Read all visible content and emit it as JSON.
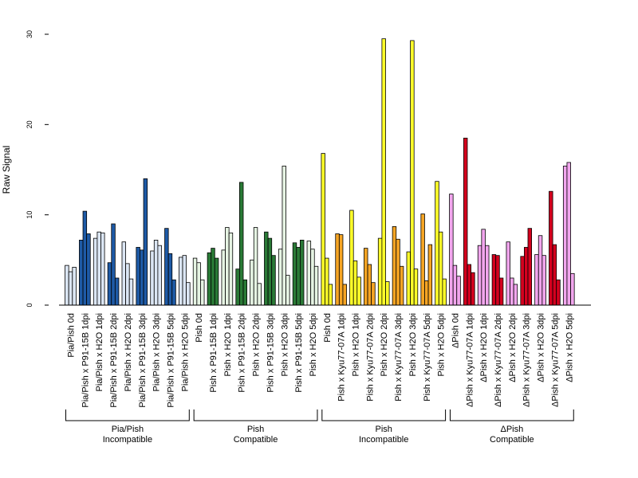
{
  "chart_data": {
    "type": "bar",
    "ylabel": "Raw Signal",
    "ylim": [
      0,
      30
    ],
    "yticks": [
      0,
      10,
      20,
      30
    ],
    "grid": false,
    "colors": {
      "pale_blue": "#dbe6f4",
      "dark_blue": "#1e5aa6",
      "pale_green": "#e6f4e3",
      "dark_green": "#2a7a36",
      "yellow": "#ffff2a",
      "orange": "#f6a524",
      "pink": "#f2a6ee",
      "red": "#d4001e"
    },
    "categories": [
      {
        "label": "Pia/Pish 0d",
        "color": "pale_blue",
        "values": [
          4.4,
          3.7,
          4.2
        ]
      },
      {
        "label": "Pia/Pish x P91-15B 1dpi",
        "color": "dark_blue",
        "values": [
          7.2,
          10.4,
          7.9
        ]
      },
      {
        "label": "Pia/Pish x H2O 1dpi",
        "color": "pale_blue",
        "values": [
          7.4,
          8.1,
          8.0
        ]
      },
      {
        "label": "Pia/Pish x P91-15B 2dpi",
        "color": "dark_blue",
        "values": [
          4.7,
          9.0,
          3.0
        ]
      },
      {
        "label": "Pia/Pish x H2O 2dpi",
        "color": "pale_blue",
        "values": [
          7.0,
          4.6,
          2.9
        ]
      },
      {
        "label": "Pia/Pish x P91-15B 3dpi",
        "color": "dark_blue",
        "values": [
          6.4,
          6.1,
          14.0
        ]
      },
      {
        "label": "Pia/Pish x H2O 3dpi",
        "color": "pale_blue",
        "values": [
          6.0,
          7.2,
          6.6
        ]
      },
      {
        "label": "Pia/Pish x P91-15B 5dpi",
        "color": "dark_blue",
        "values": [
          8.5,
          5.7,
          2.8
        ]
      },
      {
        "label": "Pia/Pish x H2O 5dpi",
        "color": "pale_blue",
        "values": [
          5.3,
          5.5,
          2.5
        ]
      },
      {
        "label": "Pish 0d",
        "color": "pale_green",
        "values": [
          5.2,
          4.7,
          2.8
        ]
      },
      {
        "label": "Pish x P91-15B 1dpi",
        "color": "dark_green",
        "values": [
          5.8,
          6.3,
          5.2
        ]
      },
      {
        "label": "Pish x H2O 1dpi",
        "color": "pale_green",
        "values": [
          6.1,
          8.6,
          8.0
        ]
      },
      {
        "label": "Pish x P91-15B 2dpi",
        "color": "dark_green",
        "values": [
          4.0,
          13.6,
          2.8
        ]
      },
      {
        "label": "Pish x H2O 2dpi",
        "color": "pale_green",
        "values": [
          5.0,
          8.6,
          2.4
        ]
      },
      {
        "label": "Pish x P91-15B 3dpi",
        "color": "dark_green",
        "values": [
          8.1,
          7.4,
          5.5
        ]
      },
      {
        "label": "Pish x H2O 3dpi",
        "color": "pale_green",
        "values": [
          6.2,
          15.4,
          3.3
        ]
      },
      {
        "label": "Pish x P91-15B 5dpi",
        "color": "dark_green",
        "values": [
          6.9,
          6.4,
          7.2
        ]
      },
      {
        "label": "Pish x H2O 5dpi",
        "color": "pale_green",
        "values": [
          7.1,
          6.2,
          4.3
        ]
      },
      {
        "label": "Pish 0d",
        "color": "yellow",
        "values": [
          16.8,
          5.2,
          2.3
        ]
      },
      {
        "label": "Pish x Kyu77-07A 1dpi",
        "color": "orange",
        "values": [
          7.9,
          7.8,
          2.3
        ]
      },
      {
        "label": "Pish x H2O 1dpi",
        "color": "yellow",
        "values": [
          10.5,
          4.9,
          3.1
        ]
      },
      {
        "label": "Pish x Kyu77-07A 2dpi",
        "color": "orange",
        "values": [
          6.3,
          4.5,
          2.5
        ]
      },
      {
        "label": "Pish x H2O 2dpi",
        "color": "yellow",
        "values": [
          7.4,
          29.5,
          2.6
        ]
      },
      {
        "label": "Pish x Kyu77-07A 3dpi",
        "color": "orange",
        "values": [
          8.7,
          7.3,
          4.3
        ]
      },
      {
        "label": "Pish x H2O 3dpi",
        "color": "yellow",
        "values": [
          5.9,
          29.3,
          4.0
        ]
      },
      {
        "label": "Pish x Kyu77-07A 5dpi",
        "color": "orange",
        "values": [
          10.1,
          2.7,
          6.7
        ]
      },
      {
        "label": "Pish x H2O 5dpi",
        "color": "yellow",
        "values": [
          13.7,
          8.1,
          2.9
        ]
      },
      {
        "label": "ΔPish 0d",
        "color": "pink",
        "values": [
          12.3,
          4.4,
          3.2
        ]
      },
      {
        "label": "ΔPish x Kyu77-07A 1dpi",
        "color": "red",
        "values": [
          18.5,
          4.5,
          3.6
        ]
      },
      {
        "label": "ΔPish x H2O 1dpi",
        "color": "pink",
        "values": [
          6.6,
          8.4,
          6.6
        ]
      },
      {
        "label": "ΔPish x Kyu77-07A 2dpi",
        "color": "red",
        "values": [
          5.6,
          5.5,
          3.0
        ]
      },
      {
        "label": "ΔPish x H2O 2dpi",
        "color": "pink",
        "values": [
          7.0,
          3.0,
          2.3
        ]
      },
      {
        "label": "ΔPish x Kyu77-07A 3dpi",
        "color": "red",
        "values": [
          5.4,
          6.4,
          8.5
        ]
      },
      {
        "label": "ΔPish x H2O 3dpi",
        "color": "pink",
        "values": [
          5.6,
          7.7,
          5.5
        ]
      },
      {
        "label": "ΔPish x Kyu77-07A 5dpi",
        "color": "red",
        "values": [
          12.6,
          6.7,
          2.8
        ]
      },
      {
        "label": "ΔPish x H2O 5dpi",
        "color": "pink",
        "values": [
          15.4,
          15.8,
          3.5
        ]
      }
    ],
    "groups": [
      {
        "lines": [
          "Pia/Pish",
          "Incompatible"
        ],
        "first": 0,
        "last": 8
      },
      {
        "lines": [
          "Pish",
          "Compatible"
        ],
        "first": 9,
        "last": 17
      },
      {
        "lines": [
          "Pish",
          "Incompatible"
        ],
        "first": 18,
        "last": 26
      },
      {
        "lines": [
          "ΔPish",
          "Compatible"
        ],
        "first": 27,
        "last": 35
      }
    ]
  }
}
